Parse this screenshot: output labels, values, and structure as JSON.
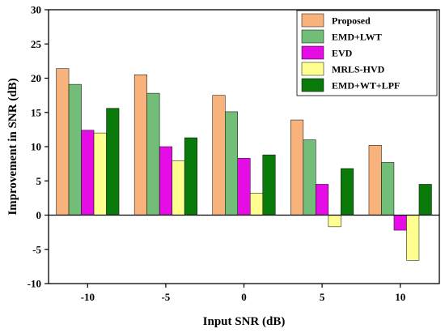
{
  "chart_data": {
    "type": "bar",
    "xlabel": "Input SNR (dB)",
    "ylabel": "Improvement in SNR (dB)",
    "categories": [
      "-10",
      "-5",
      "0",
      "5",
      "10"
    ],
    "ylim": [
      -10,
      30
    ],
    "yticks": [
      "-10",
      "-5",
      "0",
      "5",
      "10",
      "15",
      "20",
      "25",
      "30"
    ],
    "legend_position": "top-right",
    "series": [
      {
        "name": "Proposed",
        "color": "#F8B27C",
        "values": [
          21.4,
          20.5,
          17.5,
          13.9,
          10.2
        ]
      },
      {
        "name": "EMD+LWT",
        "color": "#72BD77",
        "values": [
          19.1,
          17.8,
          15.1,
          11.0,
          7.7
        ]
      },
      {
        "name": "EVD",
        "color": "#E60CE6",
        "values": [
          12.4,
          10.0,
          8.3,
          4.5,
          -2.2
        ]
      },
      {
        "name": "MRLS-HVD",
        "color": "#FFFF8F",
        "values": [
          12.0,
          7.9,
          3.2,
          -1.7,
          -6.6
        ]
      },
      {
        "name": "EMD+WT+LPF",
        "color": "#0A7A0A",
        "values": [
          15.6,
          11.3,
          8.8,
          6.8,
          4.5
        ]
      }
    ]
  }
}
